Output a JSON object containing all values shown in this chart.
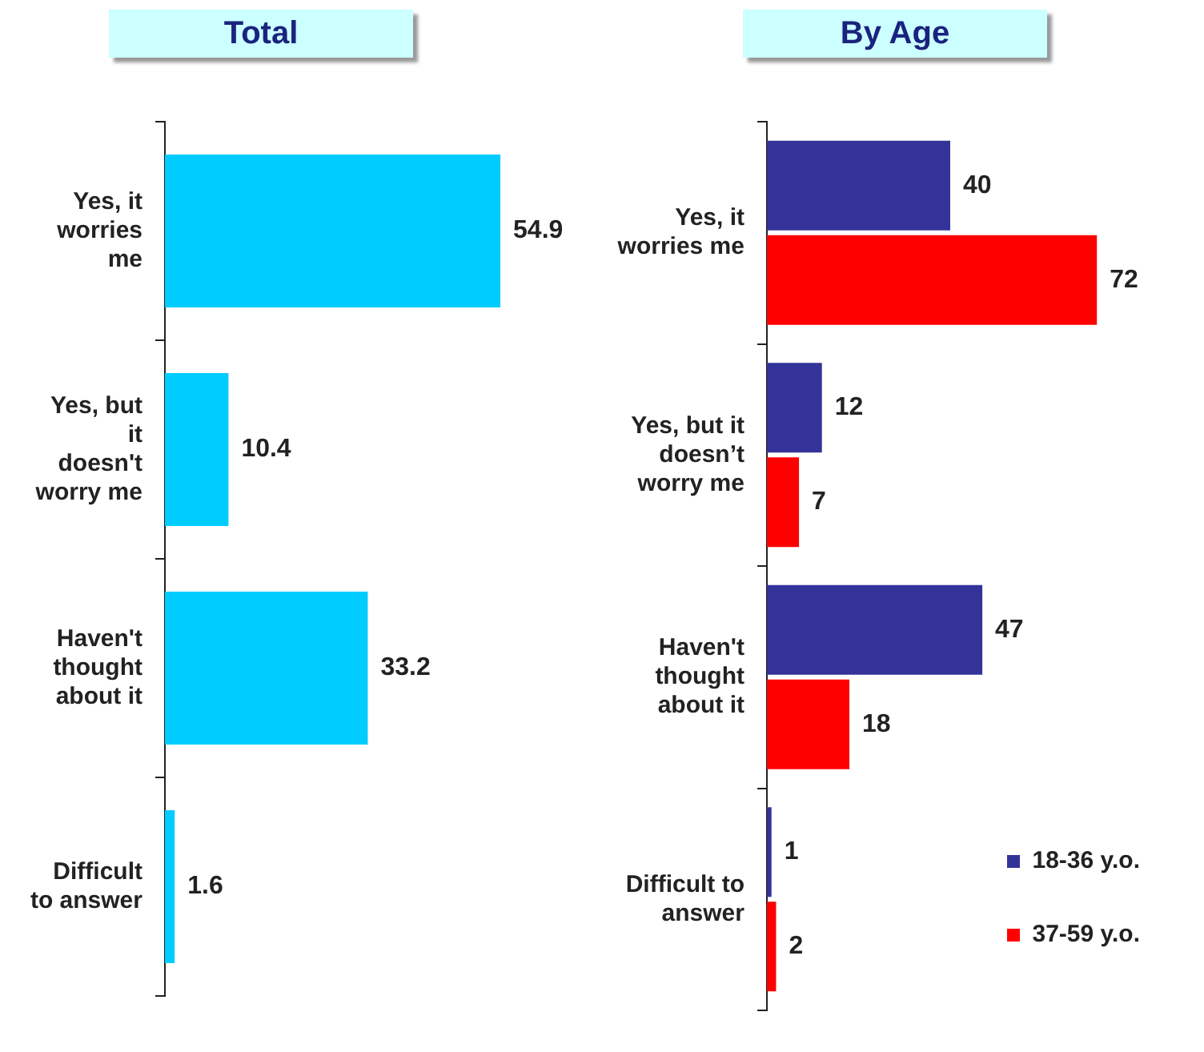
{
  "chart_data": [
    {
      "type": "bar",
      "title": "Total",
      "orientation": "horizontal",
      "categories": [
        "Yes, it worries me",
        "Yes, but it doesn't worry me",
        "Haven't thought about it",
        "Difficult to answer"
      ],
      "values": [
        54.9,
        10.4,
        33.2,
        1.6
      ],
      "color": "#00ccff",
      "data_labels": true,
      "legend": false
    },
    {
      "type": "bar",
      "title": "By Age",
      "orientation": "horizontal",
      "categories": [
        "Yes, it worries me",
        "Yes, but it doesn’t worry me",
        "Haven't thought about it",
        "Difficult to answer"
      ],
      "series": [
        {
          "name": "18-36 y.o.",
          "color": "#333399",
          "values": [
            40,
            12,
            47,
            1
          ]
        },
        {
          "name": "37-59 y.o.",
          "color": "#ff0000",
          "values": [
            72,
            7,
            18,
            2
          ]
        }
      ],
      "data_labels": true,
      "legend": "bottom right"
    }
  ]
}
